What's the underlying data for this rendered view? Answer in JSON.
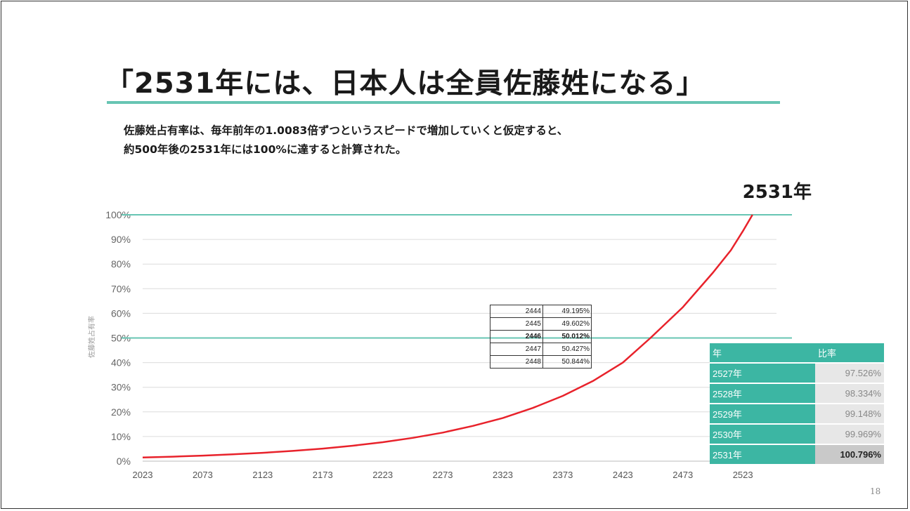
{
  "title": "「2531年には、日本人は全員佐藤姓になる」",
  "description": [
    "佐藤姓占有率は、毎年前年の1.0083倍ずつというスピードで増加していくと仮定すると、",
    "約500年後の2531年には100%に達すると計算された。"
  ],
  "page_number": "18",
  "annotation_2531": "2531年",
  "colors": {
    "accent": "#67c5b3",
    "curve": "#e8222b",
    "table_header": "#3cb6a3"
  },
  "chart_data": {
    "type": "line",
    "title": "",
    "xlabel": "",
    "ylabel": "佐藤姓占有率",
    "x_ticks": [
      "2023",
      "2073",
      "2123",
      "2173",
      "2223",
      "2273",
      "2323",
      "2373",
      "2423",
      "2473",
      "2523"
    ],
    "y_ticks": [
      "0%",
      "10%",
      "20%",
      "30%",
      "40%",
      "50%",
      "60%",
      "70%",
      "80%",
      "90%",
      "100%"
    ],
    "xlim": [
      2023,
      2551
    ],
    "ylim": [
      0,
      100
    ],
    "grid": true,
    "reference_lines": [
      50,
      100
    ],
    "series": [
      {
        "values": [
          {
            "x": 2023,
            "y": 1.48
          },
          {
            "x": 2048,
            "y": 1.82
          },
          {
            "x": 2073,
            "y": 2.24
          },
          {
            "x": 2098,
            "y": 2.75
          },
          {
            "x": 2123,
            "y": 3.38
          },
          {
            "x": 2148,
            "y": 4.15
          },
          {
            "x": 2173,
            "y": 5.1
          },
          {
            "x": 2198,
            "y": 6.27
          },
          {
            "x": 2223,
            "y": 7.7
          },
          {
            "x": 2248,
            "y": 9.46
          },
          {
            "x": 2273,
            "y": 11.6
          },
          {
            "x": 2298,
            "y": 14.3
          },
          {
            "x": 2323,
            "y": 17.5
          },
          {
            "x": 2348,
            "y": 21.6
          },
          {
            "x": 2373,
            "y": 26.5
          },
          {
            "x": 2398,
            "y": 32.5
          },
          {
            "x": 2423,
            "y": 40.0
          },
          {
            "x": 2446,
            "y": 50.0
          },
          {
            "x": 2473,
            "y": 62.5
          },
          {
            "x": 2498,
            "y": 76.5
          },
          {
            "x": 2513,
            "y": 85.6
          },
          {
            "x": 2523,
            "y": 93.4
          },
          {
            "x": 2531,
            "y": 100.8
          }
        ]
      }
    ]
  },
  "inset_table": [
    {
      "year": "2444",
      "value": "49.195%"
    },
    {
      "year": "2445",
      "value": "49.602%"
    },
    {
      "year": "2446",
      "value": "50.012%"
    },
    {
      "year": "2447",
      "value": "50.427%"
    },
    {
      "year": "2448",
      "value": "50.844%"
    }
  ],
  "ratio_table": {
    "headers": [
      "年",
      "比率"
    ],
    "rows": [
      {
        "year": "2527年",
        "value": "97.526%"
      },
      {
        "year": "2528年",
        "value": "98.334%"
      },
      {
        "year": "2529年",
        "value": "99.148%"
      },
      {
        "year": "2530年",
        "value": "99.969%"
      },
      {
        "year": "2531年",
        "value": "100.796%"
      }
    ]
  }
}
